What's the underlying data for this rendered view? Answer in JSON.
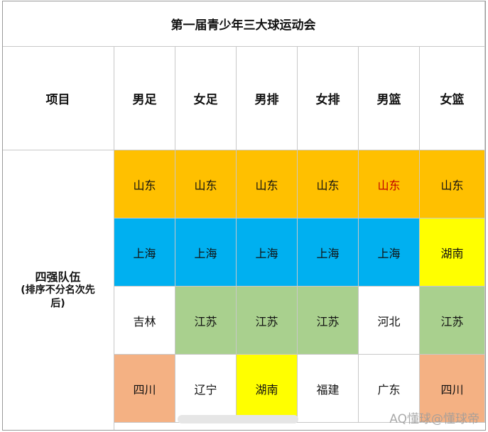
{
  "table": {
    "title": "第一届青少年三大球运动会",
    "headers": [
      "项目",
      "男足",
      "女足",
      "男排",
      "女排",
      "男篮",
      "女篮"
    ],
    "row_label": {
      "line1": "四强队伍",
      "line2": "(排序不分名次先",
      "line3": "后)"
    },
    "rows": [
      [
        "山东",
        "山东",
        "山东",
        "山东",
        "山东",
        "山东"
      ],
      [
        "上海",
        "上海",
        "上海",
        "上海",
        "上海",
        "湖南"
      ],
      [
        "吉林",
        "江苏",
        "江苏",
        "江苏",
        "河北",
        "江苏"
      ],
      [
        "四川",
        "辽宁",
        "湖南",
        "福建",
        "广东",
        "四川"
      ]
    ],
    "cell_colors": [
      [
        "#ffc000",
        "#ffc000",
        "#ffc000",
        "#ffc000",
        "#ffc000",
        "#ffc000"
      ],
      [
        "#00b0f0",
        "#00b0f0",
        "#00b0f0",
        "#00b0f0",
        "#00b0f0",
        "#ffff00"
      ],
      [
        "#ffffff",
        "#a9d08e",
        "#a9d08e",
        "#a9d08e",
        "#ffffff",
        "#a9d08e"
      ],
      [
        "#f4b183",
        "#ffffff",
        "#ffff00",
        "#ffffff",
        "#ffffff",
        "#f4b183"
      ]
    ]
  },
  "watermark": {
    "text": "AQ懂球@懂球帝"
  }
}
